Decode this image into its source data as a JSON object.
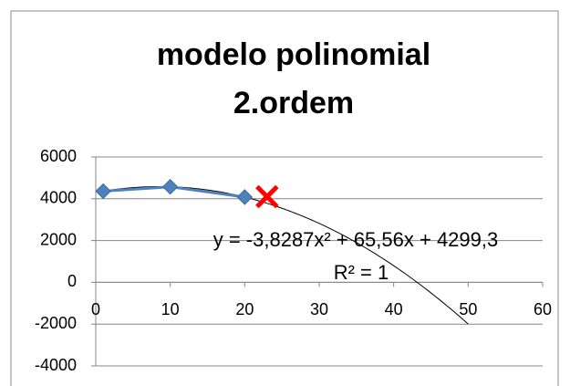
{
  "chart_data": {
    "type": "scatter",
    "title": [
      "modelo polinomial",
      "2.ordem"
    ],
    "series": [
      {
        "x": [
          1,
          10,
          20
        ],
        "values": [
          4361,
          4572,
          4079
        ],
        "color": "#4f81bd",
        "marker": "diamond",
        "line": true
      },
      {
        "x": [
          23
        ],
        "values": [
          4100
        ],
        "color": "#ff0000",
        "marker": "x",
        "line": false
      }
    ],
    "trendline": {
      "equation": "y = -3,8287x² + 65,56x + 4299,3",
      "r2_label": "R² = 1",
      "coefficients": [
        -3.8287,
        65.56,
        4299.3
      ],
      "xlim": [
        1,
        50
      ],
      "color": "#000000"
    },
    "xlim": [
      0,
      60
    ],
    "xticks": [
      0,
      10,
      20,
      30,
      40,
      50,
      60
    ],
    "ylim": [
      -4000,
      6000
    ],
    "yticks": [
      -4000,
      -2000,
      0,
      2000,
      4000,
      6000
    ],
    "grid": true
  }
}
